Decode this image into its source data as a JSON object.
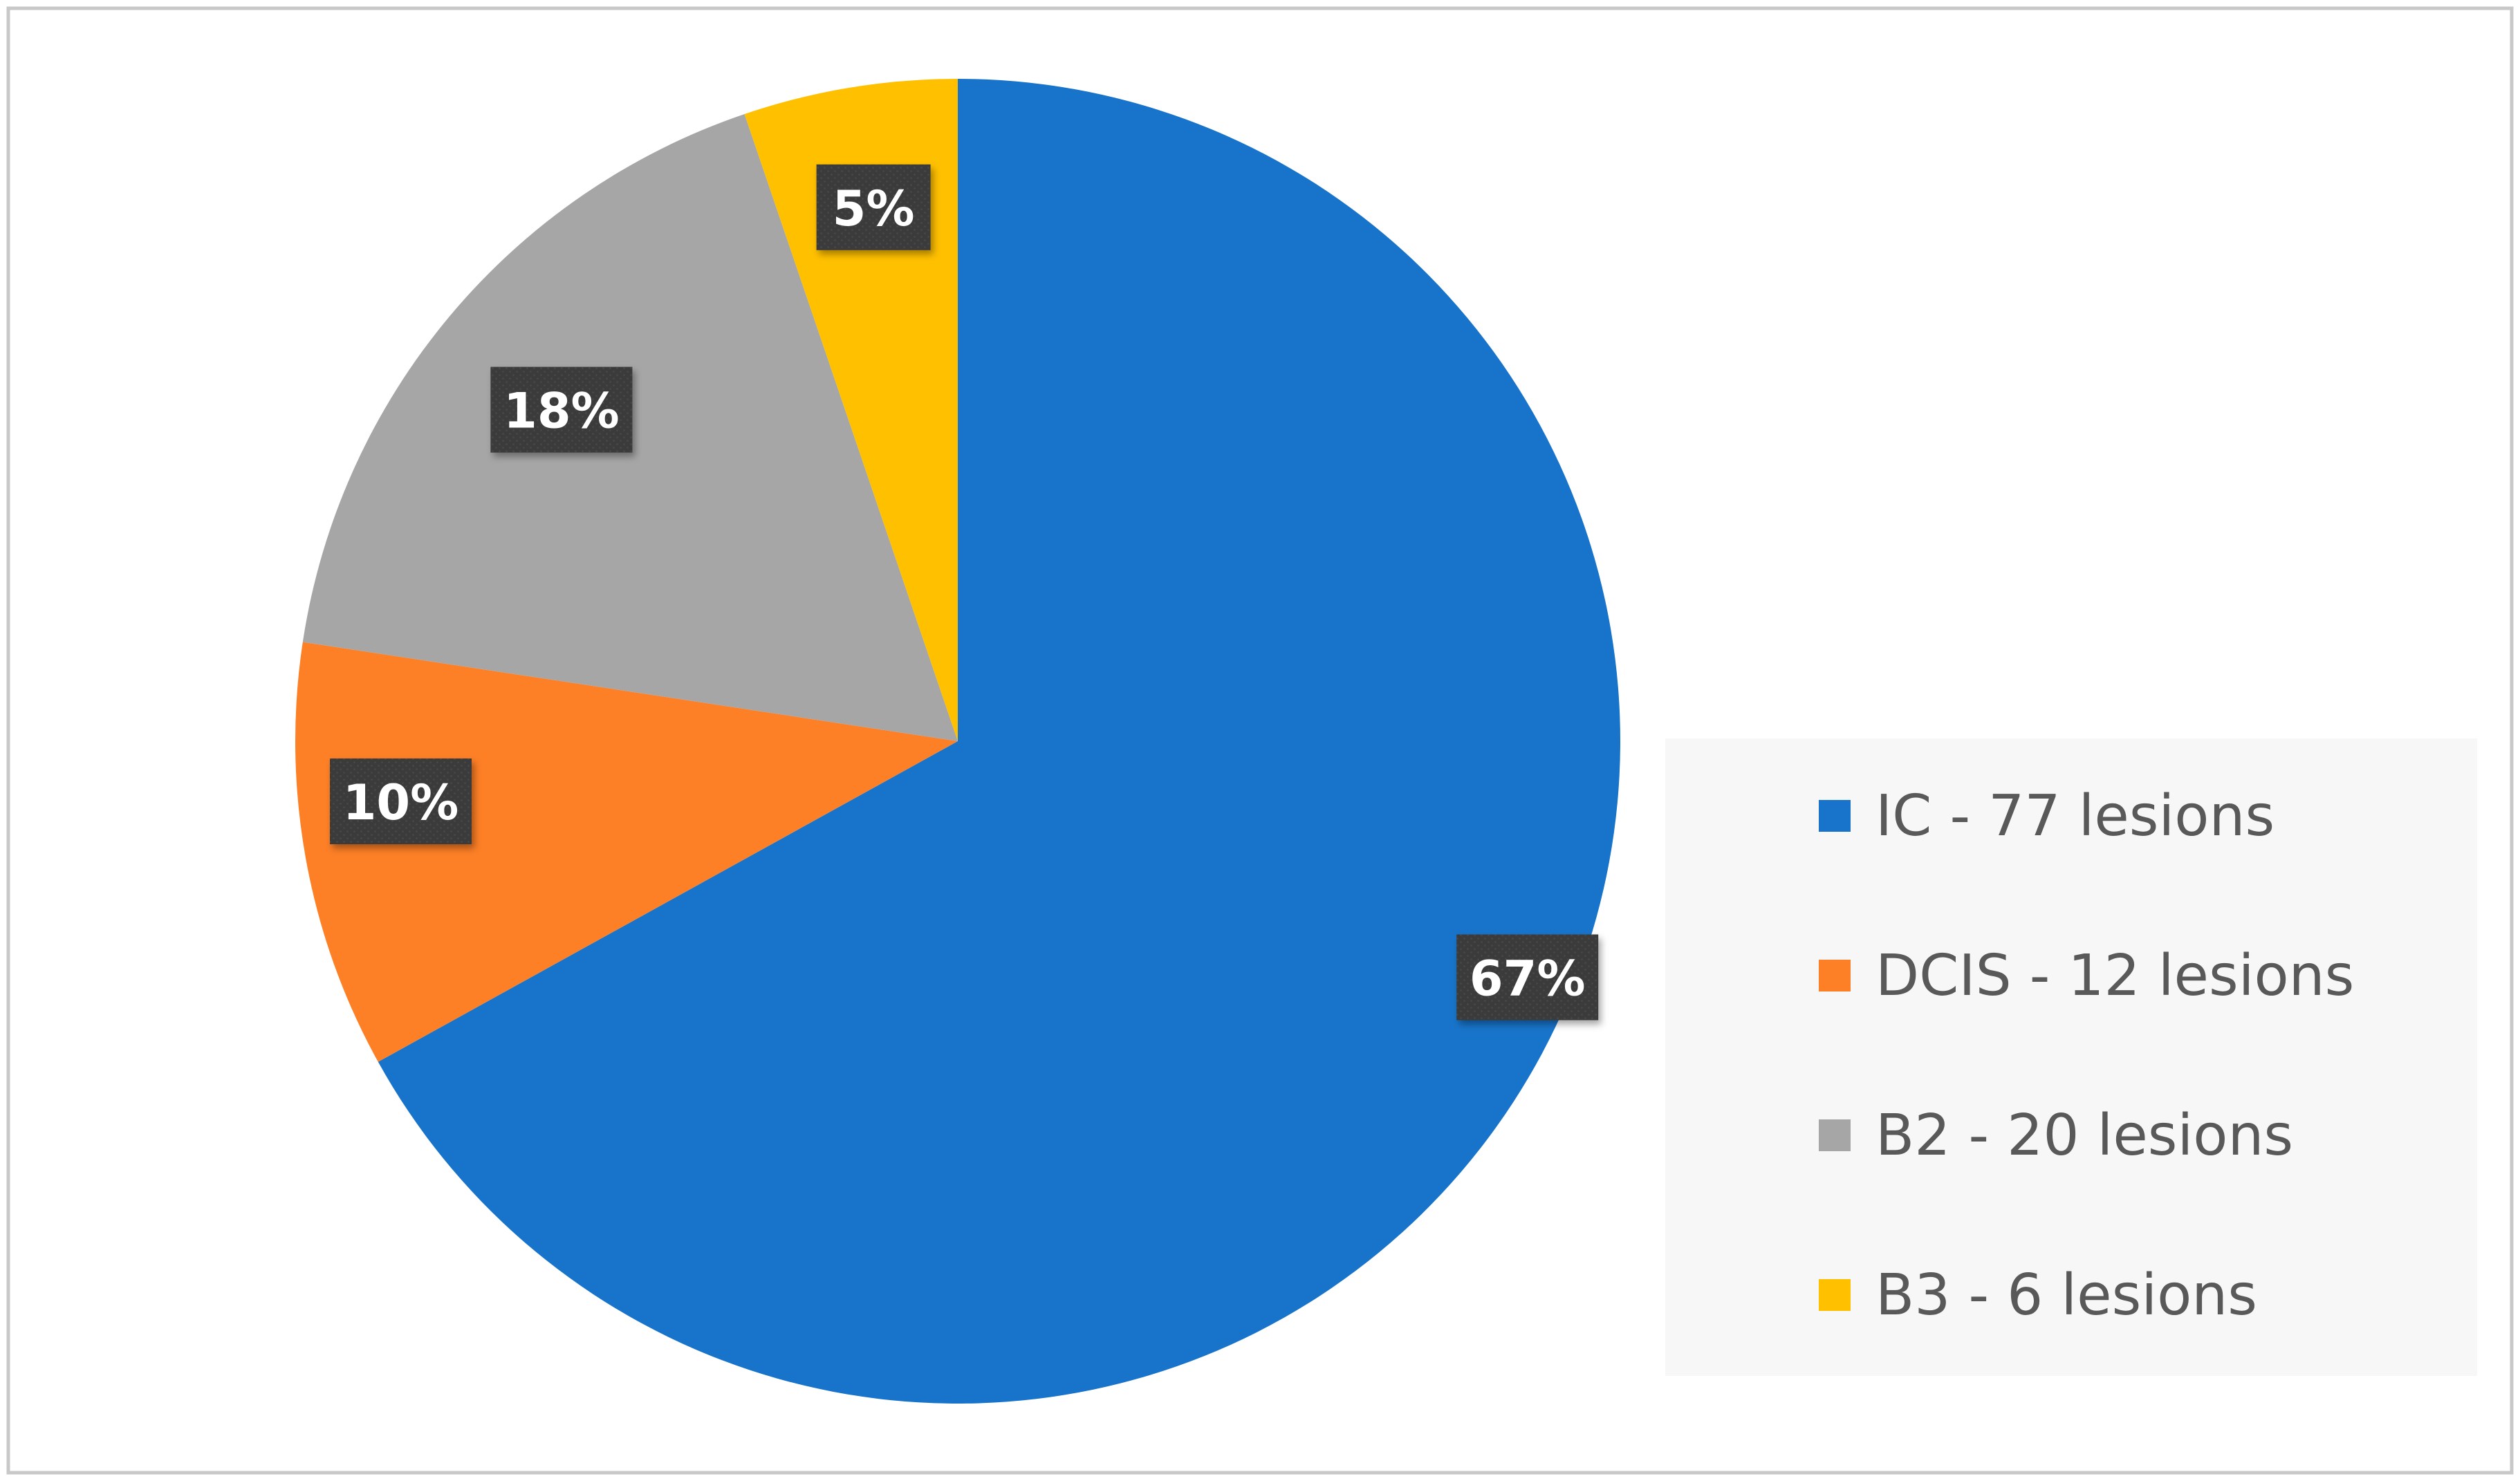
{
  "chart_data": {
    "type": "pie",
    "title": "",
    "categories": [
      "IC",
      "DCIS",
      "B2",
      "B3"
    ],
    "values": [
      77,
      12,
      20,
      6
    ],
    "percent_labels": [
      "67%",
      "10%",
      "18%",
      "5%"
    ],
    "legend": [
      "IC - 77 lesions",
      "DCIS - 12 lesions",
      "B2 - 20 lesions",
      "B3 - 6 lesions"
    ],
    "colors": [
      "#1874CA",
      "#FD7F26",
      "#A6A6A6",
      "#FFC000"
    ],
    "start_angle": "12 o'clock",
    "direction": "clockwise",
    "legend_position": "right"
  }
}
